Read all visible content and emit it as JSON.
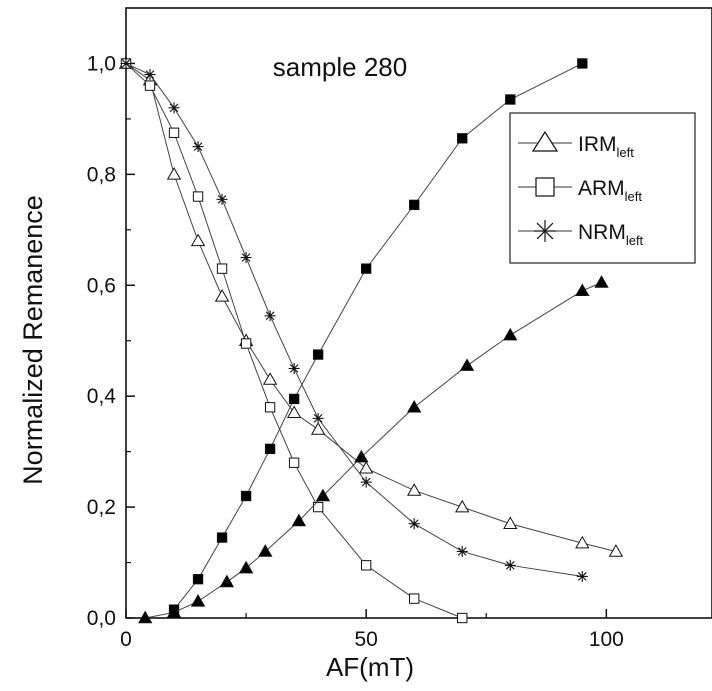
{
  "chart_data": {
    "type": "line",
    "title": "sample 280",
    "xlabel": "AF(mT)",
    "ylabel": "Normalized Remanence",
    "xlim": [
      0,
      122
    ],
    "ylim": [
      0,
      1.1
    ],
    "x_ticks": [
      {
        "value": 0,
        "label": "0"
      },
      {
        "value": 50,
        "label": "50"
      },
      {
        "value": 100,
        "label": "100"
      }
    ],
    "y_ticks": [
      {
        "value": 0.0,
        "label": "0,0"
      },
      {
        "value": 0.2,
        "label": "0,2"
      },
      {
        "value": 0.4,
        "label": "0,4"
      },
      {
        "value": 0.6,
        "label": "0,6"
      },
      {
        "value": 0.8,
        "label": "0,8"
      },
      {
        "value": 1.0,
        "label": "1,0"
      }
    ],
    "grid": false,
    "legend_position": "top-right",
    "legend": [
      {
        "main": "IRM",
        "sub": "left",
        "marker": "triangle-open"
      },
      {
        "main": "ARM",
        "sub": "left",
        "marker": "square-open"
      },
      {
        "main": "NRM",
        "sub": "left",
        "marker": "asterisk"
      }
    ],
    "series": [
      {
        "name": "IRM left",
        "marker": "triangle-open",
        "x": [
          0,
          5,
          10,
          15,
          20,
          25,
          30,
          35,
          40,
          50,
          60,
          70,
          80,
          95,
          102
        ],
        "y": [
          1.0,
          0.97,
          0.8,
          0.68,
          0.58,
          0.5,
          0.43,
          0.37,
          0.34,
          0.27,
          0.23,
          0.2,
          0.17,
          0.135,
          0.12
        ]
      },
      {
        "name": "ARM left",
        "marker": "square-open",
        "x": [
          0,
          5,
          10,
          15,
          20,
          25,
          30,
          35,
          40,
          50,
          60,
          70
        ],
        "y": [
          1.0,
          0.96,
          0.875,
          0.76,
          0.63,
          0.495,
          0.38,
          0.28,
          0.2,
          0.095,
          0.035,
          0.0
        ]
      },
      {
        "name": "NRM left",
        "marker": "asterisk",
        "x": [
          0,
          5,
          10,
          15,
          20,
          25,
          30,
          35,
          40,
          50,
          60,
          70,
          80,
          95
        ],
        "y": [
          1.0,
          0.98,
          0.92,
          0.85,
          0.755,
          0.65,
          0.545,
          0.45,
          0.36,
          0.245,
          0.17,
          0.12,
          0.095,
          0.075
        ]
      },
      {
        "name": "",
        "marker": "square-filled",
        "x": [
          10,
          15,
          20,
          25,
          30,
          35,
          40,
          50,
          60,
          70,
          80,
          95
        ],
        "y": [
          0.015,
          0.07,
          0.145,
          0.22,
          0.305,
          0.395,
          0.475,
          0.63,
          0.745,
          0.865,
          0.935,
          1.0
        ]
      },
      {
        "name": "",
        "marker": "triangle-filled",
        "x": [
          4,
          10,
          15,
          21,
          25,
          29,
          36,
          41,
          49,
          60,
          71,
          80,
          95,
          99
        ],
        "y": [
          0.0,
          0.01,
          0.03,
          0.065,
          0.09,
          0.12,
          0.175,
          0.22,
          0.29,
          0.38,
          0.455,
          0.51,
          0.59,
          0.605
        ]
      }
    ]
  }
}
